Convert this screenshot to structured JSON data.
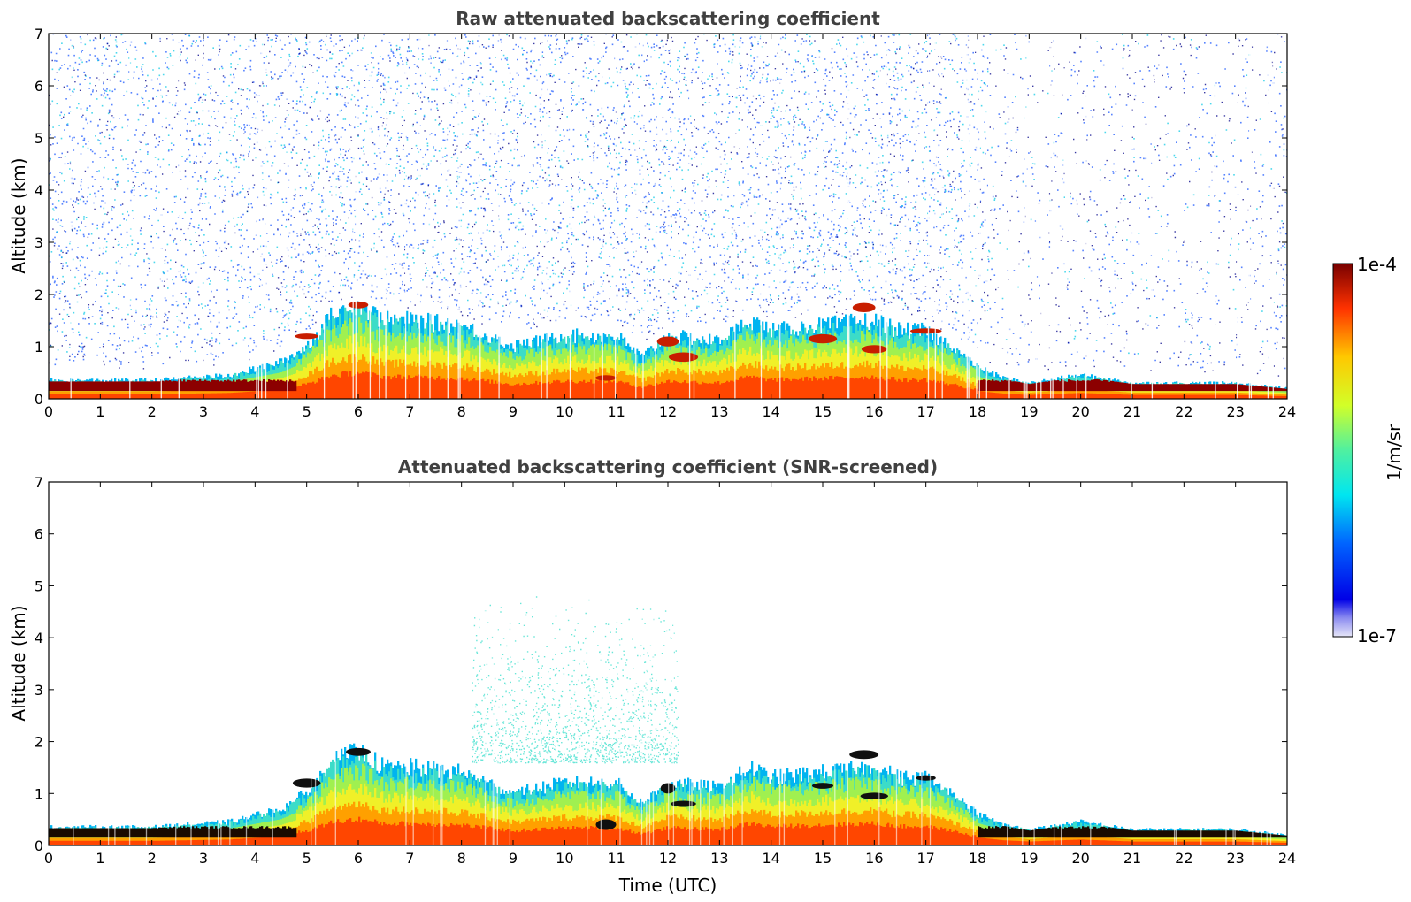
{
  "chart_data": [
    {
      "type": "heatmap",
      "title": "Raw attenuated backscattering coefficient",
      "xlabel": "",
      "ylabel": "Altitude (km)",
      "xlim": [
        0,
        24
      ],
      "ylim": [
        0,
        7
      ],
      "x_ticks": [
        0,
        1,
        2,
        3,
        4,
        5,
        6,
        7,
        8,
        9,
        10,
        11,
        12,
        13,
        14,
        15,
        16,
        17,
        18,
        19,
        20,
        21,
        22,
        23,
        24
      ],
      "y_ticks": [
        0,
        1,
        2,
        3,
        4,
        5,
        6,
        7
      ],
      "colorscale": "jet",
      "boundary_layer_top_km": [
        [
          0,
          0.35
        ],
        [
          2,
          0.35
        ],
        [
          3.5,
          0.45
        ],
        [
          4.5,
          0.7
        ],
        [
          5,
          1.0
        ],
        [
          5.5,
          1.6
        ],
        [
          6,
          1.8
        ],
        [
          6.5,
          1.5
        ],
        [
          7,
          1.5
        ],
        [
          8,
          1.4
        ],
        [
          9,
          1.0
        ],
        [
          10,
          1.2
        ],
        [
          11,
          1.2
        ],
        [
          11.5,
          0.8
        ],
        [
          12,
          1.2
        ],
        [
          13,
          1.1
        ],
        [
          13.6,
          1.5
        ],
        [
          14,
          1.3
        ],
        [
          15,
          1.4
        ],
        [
          16,
          1.5
        ],
        [
          16.5,
          1.3
        ],
        [
          17,
          1.3
        ],
        [
          17.5,
          1.0
        ],
        [
          18,
          0.6
        ],
        [
          18.5,
          0.4
        ],
        [
          19,
          0.3
        ],
        [
          20,
          0.45
        ],
        [
          21,
          0.3
        ],
        [
          22,
          0.3
        ],
        [
          23,
          0.3
        ],
        [
          24,
          0.2
        ]
      ],
      "dense_layer_km": [
        0.15,
        0.35
      ]
    },
    {
      "type": "heatmap",
      "title": "Attenuated backscattering coefficient (SNR-screened)",
      "xlabel": "Time (UTC)",
      "ylabel": "Altitude (km)",
      "xlim": [
        0,
        24
      ],
      "ylim": [
        0,
        7
      ],
      "x_ticks": [
        0,
        1,
        2,
        3,
        4,
        5,
        6,
        7,
        8,
        9,
        10,
        11,
        12,
        13,
        14,
        15,
        16,
        17,
        18,
        19,
        20,
        21,
        22,
        23,
        24
      ],
      "y_ticks": [
        0,
        1,
        2,
        3,
        4,
        5,
        6,
        7
      ],
      "colorscale": "jet"
    }
  ],
  "colorbar": {
    "max_label": "1e-4",
    "min_label": "1e-7",
    "unit": "1/m/sr"
  }
}
